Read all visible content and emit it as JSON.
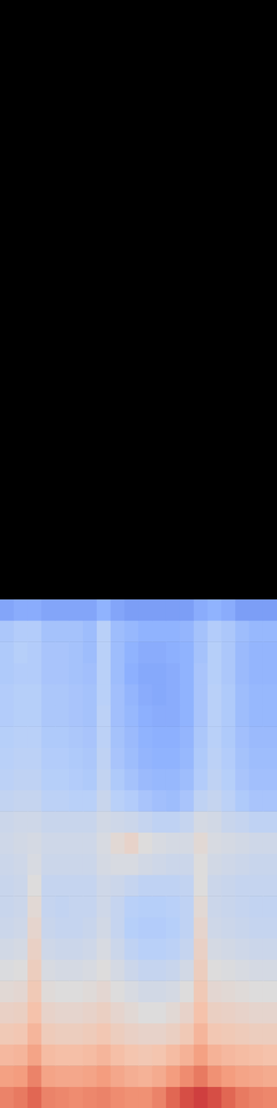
{
  "chart_data": {
    "type": "heatmap",
    "tick_labels": false,
    "zlim": [
      0,
      1
    ],
    "cells": [
      [
        0.22,
        0.24,
        0.24,
        0.22,
        0.22,
        0.22,
        0.22,
        0.26,
        0.22,
        0.2,
        0.2,
        0.2,
        0.2,
        0.2,
        0.24,
        0.26,
        0.24,
        0.2,
        0.2,
        0.2
      ],
      [
        0.34,
        0.36,
        0.36,
        0.32,
        0.32,
        0.32,
        0.3,
        0.38,
        0.3,
        0.28,
        0.26,
        0.26,
        0.26,
        0.27,
        0.32,
        0.36,
        0.34,
        0.3,
        0.28,
        0.28
      ],
      [
        0.35,
        0.37,
        0.36,
        0.33,
        0.33,
        0.32,
        0.3,
        0.38,
        0.3,
        0.26,
        0.24,
        0.24,
        0.25,
        0.26,
        0.32,
        0.37,
        0.34,
        0.29,
        0.27,
        0.27
      ],
      [
        0.35,
        0.36,
        0.36,
        0.33,
        0.33,
        0.32,
        0.31,
        0.38,
        0.3,
        0.25,
        0.23,
        0.23,
        0.24,
        0.26,
        0.33,
        0.37,
        0.34,
        0.29,
        0.27,
        0.27
      ],
      [
        0.36,
        0.37,
        0.37,
        0.34,
        0.34,
        0.33,
        0.32,
        0.38,
        0.31,
        0.27,
        0.24,
        0.23,
        0.24,
        0.26,
        0.33,
        0.38,
        0.35,
        0.3,
        0.28,
        0.28
      ],
      [
        0.36,
        0.37,
        0.37,
        0.34,
        0.34,
        0.33,
        0.32,
        0.39,
        0.31,
        0.28,
        0.25,
        0.24,
        0.24,
        0.26,
        0.33,
        0.38,
        0.35,
        0.3,
        0.28,
        0.28
      ],
      [
        0.37,
        0.38,
        0.38,
        0.35,
        0.35,
        0.34,
        0.33,
        0.39,
        0.32,
        0.29,
        0.26,
        0.25,
        0.25,
        0.27,
        0.34,
        0.38,
        0.35,
        0.31,
        0.29,
        0.29
      ],
      [
        0.38,
        0.39,
        0.39,
        0.36,
        0.36,
        0.35,
        0.34,
        0.4,
        0.33,
        0.3,
        0.27,
        0.26,
        0.26,
        0.28,
        0.35,
        0.39,
        0.36,
        0.32,
        0.3,
        0.3
      ],
      [
        0.39,
        0.4,
        0.4,
        0.37,
        0.37,
        0.36,
        0.35,
        0.41,
        0.35,
        0.32,
        0.29,
        0.28,
        0.28,
        0.3,
        0.36,
        0.4,
        0.37,
        0.33,
        0.31,
        0.31
      ],
      [
        0.41,
        0.42,
        0.42,
        0.39,
        0.39,
        0.38,
        0.38,
        0.43,
        0.38,
        0.36,
        0.33,
        0.31,
        0.3,
        0.33,
        0.4,
        0.42,
        0.39,
        0.35,
        0.33,
        0.33
      ],
      [
        0.44,
        0.45,
        0.45,
        0.43,
        0.43,
        0.43,
        0.43,
        0.46,
        0.45,
        0.44,
        0.42,
        0.4,
        0.4,
        0.42,
        0.47,
        0.46,
        0.43,
        0.42,
        0.4,
        0.4
      ],
      [
        0.45,
        0.46,
        0.47,
        0.45,
        0.45,
        0.45,
        0.45,
        0.48,
        0.52,
        0.55,
        0.5,
        0.48,
        0.47,
        0.47,
        0.52,
        0.48,
        0.47,
        0.46,
        0.45,
        0.45
      ],
      [
        0.44,
        0.45,
        0.48,
        0.44,
        0.44,
        0.44,
        0.44,
        0.47,
        0.48,
        0.48,
        0.46,
        0.45,
        0.44,
        0.44,
        0.5,
        0.46,
        0.45,
        0.44,
        0.43,
        0.43
      ],
      [
        0.43,
        0.44,
        0.5,
        0.42,
        0.42,
        0.42,
        0.42,
        0.45,
        0.44,
        0.42,
        0.4,
        0.4,
        0.4,
        0.41,
        0.5,
        0.44,
        0.43,
        0.42,
        0.42,
        0.42
      ],
      [
        0.43,
        0.44,
        0.52,
        0.42,
        0.41,
        0.42,
        0.42,
        0.45,
        0.42,
        0.38,
        0.37,
        0.37,
        0.38,
        0.4,
        0.52,
        0.44,
        0.43,
        0.42,
        0.41,
        0.41
      ],
      [
        0.44,
        0.45,
        0.54,
        0.43,
        0.42,
        0.42,
        0.43,
        0.46,
        0.42,
        0.37,
        0.36,
        0.36,
        0.37,
        0.4,
        0.54,
        0.45,
        0.44,
        0.43,
        0.42,
        0.42
      ],
      [
        0.46,
        0.47,
        0.56,
        0.45,
        0.44,
        0.44,
        0.45,
        0.48,
        0.44,
        0.4,
        0.38,
        0.38,
        0.39,
        0.42,
        0.56,
        0.47,
        0.46,
        0.45,
        0.44,
        0.44
      ],
      [
        0.49,
        0.5,
        0.58,
        0.48,
        0.47,
        0.47,
        0.48,
        0.5,
        0.47,
        0.44,
        0.42,
        0.42,
        0.43,
        0.46,
        0.58,
        0.5,
        0.49,
        0.48,
        0.47,
        0.47
      ],
      [
        0.52,
        0.53,
        0.6,
        0.51,
        0.5,
        0.5,
        0.51,
        0.53,
        0.5,
        0.48,
        0.46,
        0.46,
        0.47,
        0.5,
        0.6,
        0.53,
        0.52,
        0.51,
        0.5,
        0.5
      ],
      [
        0.56,
        0.57,
        0.63,
        0.55,
        0.54,
        0.54,
        0.55,
        0.57,
        0.54,
        0.52,
        0.5,
        0.5,
        0.52,
        0.55,
        0.63,
        0.57,
        0.56,
        0.55,
        0.54,
        0.54
      ],
      [
        0.6,
        0.61,
        0.67,
        0.59,
        0.58,
        0.58,
        0.59,
        0.61,
        0.58,
        0.56,
        0.55,
        0.55,
        0.57,
        0.6,
        0.67,
        0.61,
        0.6,
        0.59,
        0.58,
        0.58
      ],
      [
        0.66,
        0.67,
        0.72,
        0.65,
        0.64,
        0.64,
        0.65,
        0.67,
        0.64,
        0.62,
        0.61,
        0.62,
        0.65,
        0.68,
        0.73,
        0.68,
        0.66,
        0.65,
        0.64,
        0.63
      ],
      [
        0.73,
        0.74,
        0.8,
        0.72,
        0.71,
        0.71,
        0.72,
        0.74,
        0.71,
        0.69,
        0.68,
        0.7,
        0.74,
        0.78,
        0.82,
        0.77,
        0.74,
        0.72,
        0.71,
        0.7
      ],
      [
        0.8,
        0.82,
        0.86,
        0.8,
        0.79,
        0.78,
        0.79,
        0.8,
        0.78,
        0.77,
        0.77,
        0.8,
        0.86,
        0.9,
        0.92,
        0.9,
        0.86,
        0.82,
        0.8,
        0.79
      ]
    ]
  }
}
